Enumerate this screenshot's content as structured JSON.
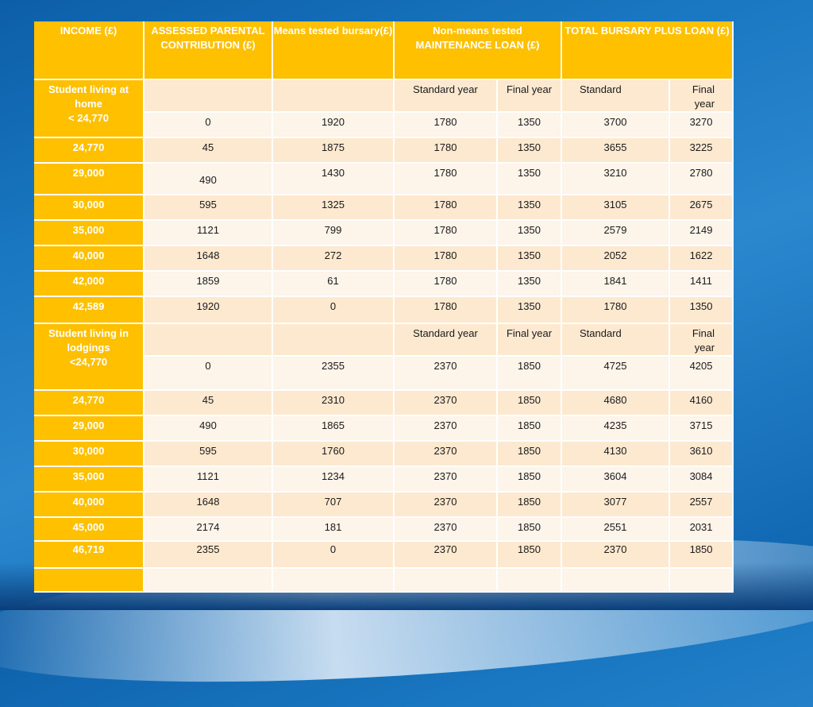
{
  "table": {
    "headers": [
      "INCOME (£)",
      "ASSESSED   PARENTAL CONTRIBUTION (£)",
      "Means tested bursary(£)",
      "Non-means tested MAINTENANCE LOAN (£)",
      "TOTAL BURSARY PLUS LOAN (£)"
    ],
    "home": {
      "label_line1": "Student living at home",
      "label_line2": "< 24,770",
      "sub": [
        "Standard year",
        "Final year",
        "Standard",
        "Final year"
      ],
      "first_row": [
        "0",
        "1920",
        "1780",
        "1350",
        "3700",
        "3270"
      ],
      "rows": [
        [
          "24,770",
          "45",
          "1875",
          "1780",
          "1350",
          "3655",
          "3225"
        ],
        [
          "29,000",
          "490",
          "1430",
          "1780",
          "1350",
          "3210",
          "2780"
        ],
        [
          "30,000",
          "595",
          "1325",
          "1780",
          "1350",
          "3105",
          "2675"
        ],
        [
          "35,000",
          "1121",
          "799",
          "1780",
          "1350",
          "2579",
          "2149"
        ],
        [
          "40,000",
          "1648",
          "272",
          "1780",
          "1350",
          "2052",
          "1622"
        ],
        [
          "42,000",
          "1859",
          "61",
          "1780",
          "1350",
          "1841",
          "1411"
        ],
        [
          "42,589",
          "1920",
          "0",
          "1780",
          "1350",
          "1780",
          "1350"
        ]
      ]
    },
    "lodgings": {
      "label_line1": "Student living in lodgings",
      "label_line2": "<24,770",
      "sub": [
        "Standard year",
        "Final year",
        "Standard",
        "Final year"
      ],
      "first_row": [
        "0",
        "2355",
        "2370",
        "1850",
        "4725",
        "4205"
      ],
      "rows": [
        [
          "24,770",
          "45",
          "2310",
          "2370",
          "1850",
          "4680",
          "4160"
        ],
        [
          "29,000",
          "490",
          "1865",
          "2370",
          "1850",
          "4235",
          "3715"
        ],
        [
          "30,000",
          "595",
          "1760",
          "2370",
          "1850",
          "4130",
          "3610"
        ],
        [
          "35,000",
          "1121",
          "1234",
          "2370",
          "1850",
          "3604",
          "3084"
        ],
        [
          "40,000",
          "1648",
          "707",
          "2370",
          "1850",
          "3077",
          "2557"
        ],
        [
          "45,000",
          "2174",
          "181",
          "2370",
          "1850",
          "2551",
          "2031"
        ],
        [
          "46,719",
          "2355",
          "0",
          "2370",
          "1850",
          "2370",
          "1850"
        ]
      ]
    }
  }
}
